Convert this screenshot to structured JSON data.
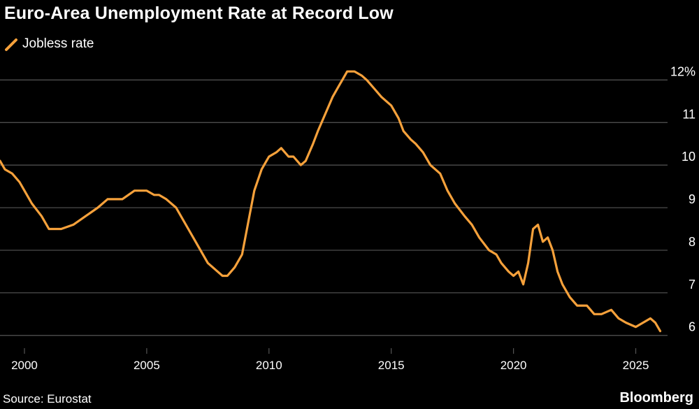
{
  "colors": {
    "background": "#000000",
    "line": "#f6a13b",
    "grid": "#555555",
    "text": "#ffffff"
  },
  "footer": {
    "source": "Source: Eurostat",
    "brand": "Bloomberg"
  },
  "chart_data": {
    "type": "line",
    "title": "Euro-Area Unemployment Rate at Record Low",
    "xlabel": "",
    "ylabel": "",
    "legend_position": "top-left",
    "grid": true,
    "xlim": [
      1999.0,
      2026.3
    ],
    "ylim": [
      5.7,
      12.4
    ],
    "yticks": [
      6,
      7,
      8,
      9,
      10,
      11,
      12
    ],
    "ytick_labels": [
      "6",
      "7",
      "8",
      "9",
      "10",
      "11",
      "12%"
    ],
    "xticks": [
      2000,
      2005,
      2010,
      2015,
      2020,
      2025
    ],
    "xtick_labels": [
      "2000",
      "2005",
      "2010",
      "2015",
      "2020",
      "2025"
    ],
    "series": [
      {
        "name": "Jobless rate",
        "x": [
          1999.0,
          1999.2,
          1999.5,
          1999.8,
          2000.0,
          2000.3,
          2000.7,
          2001.0,
          2001.3,
          2001.5,
          2002.0,
          2002.5,
          2003.0,
          2003.4,
          2003.7,
          2004.0,
          2004.5,
          2005.0,
          2005.3,
          2005.5,
          2005.8,
          2006.2,
          2006.7,
          2007.0,
          2007.5,
          2007.9,
          2008.1,
          2008.3,
          2008.6,
          2008.9,
          2009.1,
          2009.4,
          2009.7,
          2010.0,
          2010.3,
          2010.5,
          2010.8,
          2011.0,
          2011.3,
          2011.5,
          2011.8,
          2012.0,
          2012.3,
          2012.6,
          2012.9,
          2013.0,
          2013.2,
          2013.5,
          2013.8,
          2014.0,
          2014.3,
          2014.6,
          2015.0,
          2015.3,
          2015.5,
          2015.8,
          2016.0,
          2016.3,
          2016.6,
          2017.0,
          2017.3,
          2017.6,
          2018.0,
          2018.3,
          2018.6,
          2019.0,
          2019.3,
          2019.5,
          2019.8,
          2020.0,
          2020.2,
          2020.4,
          2020.6,
          2020.8,
          2021.0,
          2021.2,
          2021.4,
          2021.6,
          2021.8,
          2022.0,
          2022.3,
          2022.6,
          2023.0,
          2023.3,
          2023.6,
          2024.0,
          2024.3,
          2024.6,
          2025.0,
          2025.3,
          2025.6,
          2025.8,
          2026.0
        ],
        "y": [
          10.1,
          9.9,
          9.8,
          9.6,
          9.4,
          9.1,
          8.8,
          8.5,
          8.5,
          8.5,
          8.6,
          8.8,
          9.0,
          9.2,
          9.2,
          9.2,
          9.4,
          9.4,
          9.3,
          9.3,
          9.2,
          9.0,
          8.5,
          8.2,
          7.7,
          7.5,
          7.4,
          7.4,
          7.6,
          7.9,
          8.5,
          9.4,
          9.9,
          10.2,
          10.3,
          10.4,
          10.2,
          10.2,
          10.0,
          10.1,
          10.5,
          10.8,
          11.2,
          11.6,
          11.9,
          12.0,
          12.2,
          12.2,
          12.1,
          12.0,
          11.8,
          11.6,
          11.4,
          11.1,
          10.8,
          10.6,
          10.5,
          10.3,
          10.0,
          9.8,
          9.4,
          9.1,
          8.8,
          8.6,
          8.3,
          8.0,
          7.9,
          7.7,
          7.5,
          7.4,
          7.5,
          7.2,
          7.7,
          8.5,
          8.6,
          8.2,
          8.3,
          8.0,
          7.5,
          7.2,
          6.9,
          6.7,
          6.7,
          6.5,
          6.5,
          6.6,
          6.4,
          6.3,
          6.2,
          6.3,
          6.4,
          6.3,
          6.1
        ]
      }
    ]
  }
}
